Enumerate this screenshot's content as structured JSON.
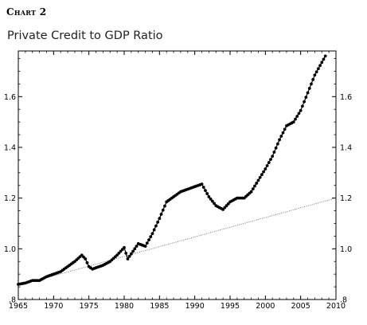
{
  "header": {
    "chart_label": "Chart 2",
    "title": "Private Credit to GDP Ratio"
  },
  "chart_data": {
    "type": "line",
    "title": "Private Credit to GDP Ratio",
    "xlabel": "",
    "ylabel": "",
    "xlim": [
      1965,
      2010
    ],
    "ylim": [
      0.8,
      1.78
    ],
    "x_ticks": [
      1965,
      1970,
      1975,
      1980,
      1985,
      1990,
      1995,
      2000,
      2005,
      2010
    ],
    "y_ticks": [
      0.8,
      1.0,
      1.2,
      1.4,
      1.6
    ],
    "y_tick_labels": [
      ".8",
      "1.0",
      "1.2",
      "1.4",
      "1.6"
    ],
    "y_axis_both_sides": true,
    "grid": false,
    "colors": {
      "series": "#000000",
      "trend": "#555555"
    },
    "series": [
      {
        "style": "dotted-markers",
        "x": [
          1965.0,
          1966.0,
          1967.0,
          1968.0,
          1969.0,
          1970.0,
          1971.0,
          1972.0,
          1973.0,
          1974.0,
          1974.5,
          1975.0,
          1975.5,
          1976.0,
          1977.0,
          1978.0,
          1979.0,
          1980.0,
          1980.5,
          1981.0,
          1982.0,
          1983.0,
          1984.0,
          1985.0,
          1986.0,
          1987.0,
          1988.0,
          1989.0,
          1990.0,
          1991.0,
          1992.0,
          1993.0,
          1994.0,
          1995.0,
          1996.0,
          1997.0,
          1998.0,
          1999.0,
          2000.0,
          2001.0,
          2002.0,
          2003.0,
          2004.0,
          2005.0,
          2006.0,
          2007.0,
          2008.0,
          2008.5
        ],
        "y": [
          0.86,
          0.865,
          0.875,
          0.875,
          0.89,
          0.9,
          0.91,
          0.93,
          0.95,
          0.975,
          0.96,
          0.93,
          0.92,
          0.925,
          0.935,
          0.95,
          0.975,
          1.005,
          0.96,
          0.98,
          1.02,
          1.01,
          1.06,
          1.12,
          1.185,
          1.205,
          1.225,
          1.235,
          1.245,
          1.255,
          1.205,
          1.17,
          1.155,
          1.185,
          1.2,
          1.2,
          1.225,
          1.27,
          1.315,
          1.365,
          1.43,
          1.485,
          1.5,
          1.545,
          1.615,
          1.685,
          1.735,
          1.76
        ]
      },
      {
        "style": "thin-dotted-trend",
        "x": [
          1965,
          2010
        ],
        "y": [
          0.855,
          1.2
        ]
      }
    ]
  }
}
